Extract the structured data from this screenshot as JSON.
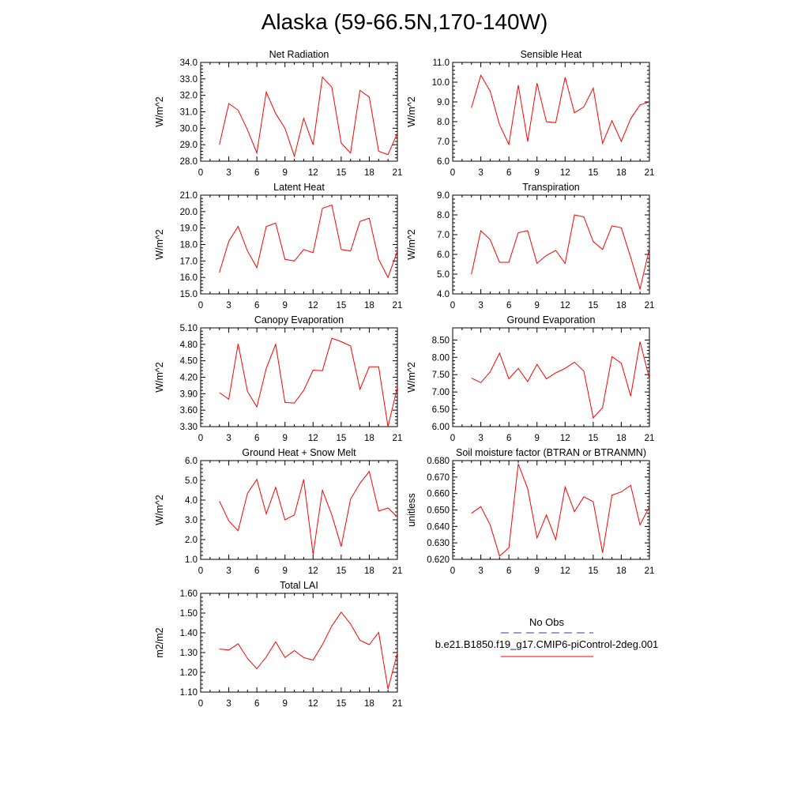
{
  "page": {
    "title": "Alaska (59-66.5N,170-140W)"
  },
  "legend": {
    "entries": [
      {
        "label": "No Obs",
        "color": "#3b3ba6",
        "dash": true
      },
      {
        "label": "b.e21.B1850.f19_g17.CMIP6-piControl-2deg.001",
        "color": "#ff0000",
        "dash": false
      }
    ]
  },
  "chart_data": [
    {
      "type": "line",
      "title": "Net Radiation",
      "ylabel": "W/m^2",
      "xlim": [
        0,
        21
      ],
      "ylim": [
        28.0,
        34.0
      ],
      "xticks": [
        "0",
        "3",
        "6",
        "9",
        "12",
        "15",
        "18",
        "21"
      ],
      "yticks": [
        "28.0",
        "29.0",
        "30.0",
        "31.0",
        "32.0",
        "33.0",
        "34.0"
      ],
      "x": [
        2,
        3,
        4,
        5,
        6,
        7,
        8,
        9,
        10,
        11,
        12,
        13,
        14,
        15,
        16,
        17,
        18,
        19,
        20,
        21
      ],
      "series": [
        {
          "color": "#ff0000",
          "values": [
            29.0,
            31.5,
            31.1,
            29.9,
            28.5,
            32.2,
            30.9,
            30.0,
            28.3,
            30.6,
            29.0,
            33.1,
            32.5,
            29.1,
            28.5,
            32.3,
            31.9,
            28.6,
            28.4,
            29.7
          ]
        }
      ]
    },
    {
      "type": "line",
      "title": "Sensible Heat",
      "ylabel": "W/m^2",
      "xlim": [
        0,
        21
      ],
      "ylim": [
        6.0,
        11.0
      ],
      "xticks": [
        "0",
        "3",
        "6",
        "9",
        "12",
        "15",
        "18",
        "21"
      ],
      "yticks": [
        "6.0",
        "7.0",
        "8.0",
        "9.0",
        "10.0",
        "11.0"
      ],
      "x": [
        2,
        3,
        4,
        5,
        6,
        7,
        8,
        9,
        10,
        11,
        12,
        13,
        14,
        15,
        16,
        17,
        18,
        19,
        20,
        21
      ],
      "series": [
        {
          "color": "#ff0000",
          "values": [
            8.7,
            10.35,
            9.55,
            7.85,
            6.85,
            9.85,
            7.0,
            9.95,
            8.0,
            7.95,
            10.25,
            8.45,
            8.75,
            9.7,
            6.9,
            8.05,
            7.0,
            8.15,
            8.85,
            9.0
          ]
        }
      ]
    },
    {
      "type": "line",
      "title": "Latent Heat",
      "ylabel": "W/m^2",
      "xlim": [
        0,
        21
      ],
      "ylim": [
        15.0,
        21.0
      ],
      "xticks": [
        "0",
        "3",
        "6",
        "9",
        "12",
        "15",
        "18",
        "21"
      ],
      "yticks": [
        "15.0",
        "16.0",
        "17.0",
        "18.0",
        "19.0",
        "20.0",
        "21.0"
      ],
      "x": [
        2,
        3,
        4,
        5,
        6,
        7,
        8,
        9,
        10,
        11,
        12,
        13,
        14,
        15,
        16,
        17,
        18,
        19,
        20,
        21
      ],
      "series": [
        {
          "color": "#ff0000",
          "values": [
            16.3,
            18.2,
            19.1,
            17.6,
            16.6,
            19.1,
            19.3,
            17.1,
            17.0,
            17.7,
            17.5,
            20.2,
            20.4,
            17.7,
            17.6,
            19.4,
            19.6,
            17.1,
            16.0,
            17.6
          ]
        }
      ]
    },
    {
      "type": "line",
      "title": "Transpiration",
      "ylabel": "W/m^2",
      "xlim": [
        0,
        21
      ],
      "ylim": [
        4.0,
        9.0
      ],
      "xticks": [
        "0",
        "3",
        "6",
        "9",
        "12",
        "15",
        "18",
        "21"
      ],
      "yticks": [
        "4.0",
        "5.0",
        "6.0",
        "7.0",
        "8.0",
        "9.0"
      ],
      "x": [
        2,
        3,
        4,
        5,
        6,
        7,
        8,
        9,
        10,
        11,
        12,
        13,
        14,
        15,
        16,
        17,
        18,
        19,
        20,
        21
      ],
      "series": [
        {
          "color": "#ff0000",
          "values": [
            5.0,
            7.2,
            6.75,
            5.6,
            5.6,
            7.1,
            7.2,
            5.55,
            5.95,
            6.2,
            5.55,
            8.0,
            7.9,
            6.65,
            6.25,
            7.45,
            7.35,
            5.85,
            4.25,
            6.3
          ]
        }
      ]
    },
    {
      "type": "line",
      "title": "Canopy Evaporation",
      "ylabel": "W/m^2",
      "xlim": [
        0,
        21
      ],
      "ylim": [
        3.3,
        5.1
      ],
      "xticks": [
        "0",
        "3",
        "6",
        "9",
        "12",
        "15",
        "18",
        "21"
      ],
      "yticks": [
        "3.30",
        "3.60",
        "3.90",
        "4.20",
        "4.50",
        "4.80",
        "5.10"
      ],
      "x": [
        2,
        3,
        4,
        5,
        6,
        7,
        8,
        9,
        10,
        11,
        12,
        13,
        14,
        15,
        16,
        17,
        18,
        19,
        20,
        21
      ],
      "series": [
        {
          "color": "#ff0000",
          "values": [
            3.92,
            3.8,
            4.81,
            3.94,
            3.66,
            4.36,
            4.8,
            3.74,
            3.73,
            3.96,
            4.33,
            4.32,
            4.91,
            4.85,
            4.77,
            3.98,
            4.39,
            4.39,
            3.3,
            4.02
          ]
        }
      ]
    },
    {
      "type": "line",
      "title": "Ground Evaporation",
      "ylabel": "W/m^2",
      "xlim": [
        0,
        21
      ],
      "ylim": [
        6.0,
        8.85
      ],
      "xticks": [
        "0",
        "3",
        "6",
        "9",
        "12",
        "15",
        "18",
        "21"
      ],
      "yticks": [
        "6.00",
        "6.50",
        "7.00",
        "7.50",
        "8.00",
        "8.50"
      ],
      "x": [
        2,
        3,
        4,
        5,
        6,
        7,
        8,
        9,
        10,
        11,
        12,
        13,
        14,
        15,
        16,
        17,
        18,
        19,
        20,
        21
      ],
      "series": [
        {
          "color": "#ff0000",
          "values": [
            7.4,
            7.27,
            7.58,
            8.12,
            7.38,
            7.68,
            7.3,
            7.8,
            7.38,
            7.55,
            7.68,
            7.86,
            7.6,
            6.25,
            6.55,
            8.02,
            7.83,
            6.88,
            8.45,
            7.38
          ]
        }
      ]
    },
    {
      "type": "line",
      "title": "Ground Heat + Snow Melt",
      "ylabel": "W/m^2",
      "xlim": [
        0,
        21
      ],
      "ylim": [
        1.0,
        6.0
      ],
      "xticks": [
        "0",
        "3",
        "6",
        "9",
        "12",
        "15",
        "18",
        "21"
      ],
      "yticks": [
        "1.0",
        "2.0",
        "3.0",
        "4.0",
        "5.0",
        "6.0"
      ],
      "x": [
        2,
        3,
        4,
        5,
        6,
        7,
        8,
        9,
        10,
        11,
        12,
        13,
        14,
        15,
        16,
        17,
        18,
        19,
        20,
        21
      ],
      "series": [
        {
          "color": "#ff0000",
          "values": [
            3.95,
            2.95,
            2.45,
            4.35,
            5.05,
            3.3,
            4.65,
            3.0,
            3.25,
            5.05,
            1.25,
            4.5,
            3.25,
            1.65,
            4.05,
            4.85,
            5.45,
            3.45,
            3.6,
            3.15
          ]
        }
      ]
    },
    {
      "type": "line",
      "title": "Soil moisture factor (BTRAN or BTRANMN)",
      "ylabel": "unitless",
      "xlim": [
        0,
        21
      ],
      "ylim": [
        0.62,
        0.68
      ],
      "xticks": [
        "0",
        "3",
        "6",
        "9",
        "12",
        "15",
        "18",
        "21"
      ],
      "yticks": [
        "0.620",
        "0.630",
        "0.640",
        "0.650",
        "0.660",
        "0.670",
        "0.680"
      ],
      "x": [
        2,
        3,
        4,
        5,
        6,
        7,
        8,
        9,
        10,
        11,
        12,
        13,
        14,
        15,
        16,
        17,
        18,
        19,
        20,
        21
      ],
      "series": [
        {
          "color": "#ff0000",
          "values": [
            0.648,
            0.652,
            0.641,
            0.622,
            0.627,
            0.678,
            0.663,
            0.633,
            0.647,
            0.632,
            0.664,
            0.649,
            0.658,
            0.655,
            0.624,
            0.659,
            0.661,
            0.665,
            0.641,
            0.652
          ]
        }
      ]
    },
    {
      "type": "line",
      "title": "Total LAI",
      "ylabel": "m2/m2",
      "xlim": [
        0,
        21
      ],
      "ylim": [
        1.1,
        1.6
      ],
      "xticks": [
        "0",
        "3",
        "6",
        "9",
        "12",
        "15",
        "18",
        "21"
      ],
      "yticks": [
        "1.10",
        "1.20",
        "1.30",
        "1.40",
        "1.50",
        "1.60"
      ],
      "x": [
        2,
        3,
        4,
        5,
        6,
        7,
        8,
        9,
        10,
        11,
        12,
        13,
        14,
        15,
        16,
        17,
        18,
        19,
        20,
        21
      ],
      "series": [
        {
          "color": "#ff0000",
          "values": [
            1.318,
            1.313,
            1.345,
            1.27,
            1.218,
            1.278,
            1.355,
            1.275,
            1.31,
            1.275,
            1.262,
            1.34,
            1.435,
            1.505,
            1.445,
            1.362,
            1.34,
            1.402,
            1.115,
            1.298
          ]
        }
      ]
    }
  ]
}
